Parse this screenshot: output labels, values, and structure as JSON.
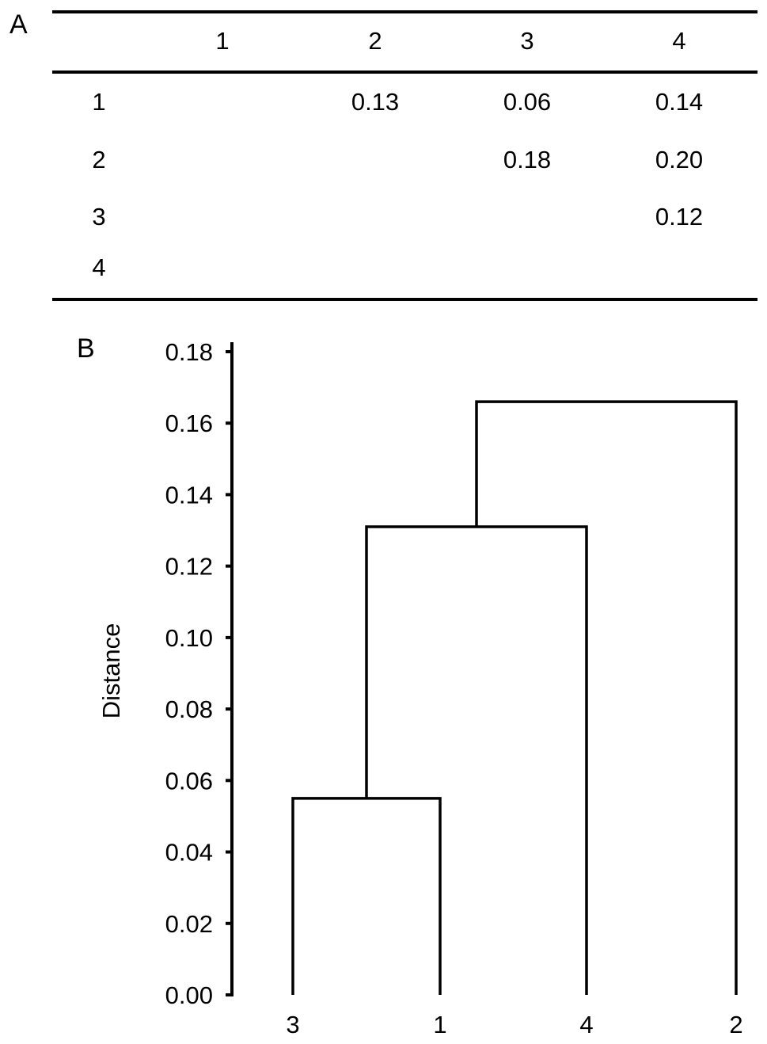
{
  "panel_a_label": "A",
  "panel_b_label": "B",
  "table": {
    "column_headers": [
      "1",
      "2",
      "3",
      "4"
    ],
    "rows": [
      {
        "label": "1",
        "cells": [
          "",
          "0.13",
          "0.06",
          "0.14"
        ]
      },
      {
        "label": "2",
        "cells": [
          "",
          "",
          "0.18",
          "0.20"
        ]
      },
      {
        "label": "3",
        "cells": [
          "",
          "",
          "",
          "0.12"
        ]
      },
      {
        "label": "4",
        "cells": [
          "",
          "",
          "",
          ""
        ]
      }
    ]
  },
  "chart_data": {
    "type": "dendrogram",
    "ylabel": "Distance",
    "xlabel": "",
    "ylim": [
      0,
      0.18
    ],
    "yticks": [
      "0.00",
      "0.02",
      "0.04",
      "0.06",
      "0.08",
      "0.10",
      "0.12",
      "0.14",
      "0.16",
      "0.18"
    ],
    "leaves": [
      "3",
      "1",
      "4",
      "2"
    ],
    "merges": [
      {
        "left": "3",
        "right": "1",
        "height": 0.055
      },
      {
        "left": "3+1",
        "right": "4",
        "height": 0.131
      },
      {
        "left": "3+1+4",
        "right": "2",
        "height": 0.166
      }
    ],
    "grid": false
  }
}
